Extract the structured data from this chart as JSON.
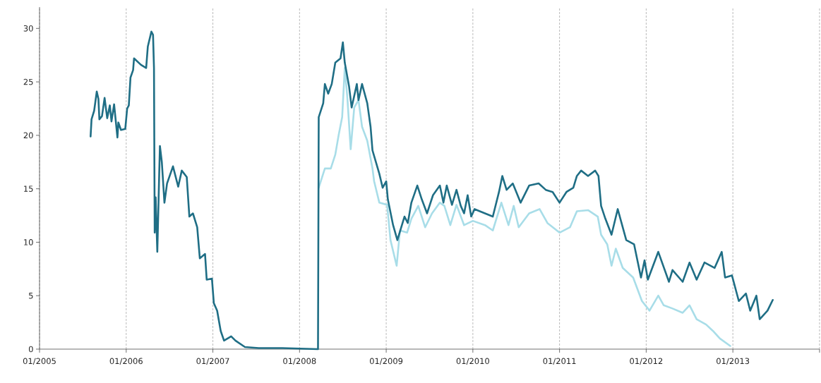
{
  "chart_data": {
    "type": "line",
    "xlim": [
      "2005-01-01",
      "2014-01-01"
    ],
    "ylim": [
      0,
      32
    ],
    "xticks": [
      {
        "value": "2005-01-01",
        "label": "01/2005"
      },
      {
        "value": "2006-01-01",
        "label": "01/2006"
      },
      {
        "value": "2007-01-01",
        "label": "01/2007"
      },
      {
        "value": "2008-01-01",
        "label": "01/2008"
      },
      {
        "value": "2009-01-01",
        "label": "01/2009"
      },
      {
        "value": "2010-01-01",
        "label": "01/2010"
      },
      {
        "value": "2011-01-01",
        "label": "01/2011"
      },
      {
        "value": "2012-01-01",
        "label": "01/2012"
      },
      {
        "value": "2013-01-01",
        "label": "01/2013"
      },
      {
        "value": "2014-01-01",
        "label": null
      }
    ],
    "yticks": [
      0,
      5,
      10,
      15,
      20,
      25,
      30
    ],
    "grid": "x",
    "line_style": "solid",
    "series": [
      {
        "color": "#a8dde8",
        "x": [
          "2008-03-22",
          "2008-04-17",
          "2008-05-12",
          "2008-05-31",
          "2008-06-14",
          "2008-06-29",
          "2008-07-10",
          "2008-07-21",
          "2008-08-04",
          "2008-08-19",
          "2008-09-06",
          "2008-09-21",
          "2008-10-13",
          "2008-11-04",
          "2008-11-11",
          "2008-12-03",
          "2009-01-05",
          "2009-01-19",
          "2009-02-14",
          "2009-02-28",
          "2009-03-30",
          "2009-04-17",
          "2009-05-16",
          "2009-06-14",
          "2009-07-13",
          "2009-08-15",
          "2009-09-03",
          "2009-09-28",
          "2009-10-24",
          "2009-11-25",
          "2010-01-01",
          "2010-02-21",
          "2010-03-26",
          "2010-05-01",
          "2010-05-31",
          "2010-06-22",
          "2010-07-13",
          "2010-08-26",
          "2010-10-09",
          "2010-11-11",
          "2011-01-01",
          "2011-02-14",
          "2011-03-15",
          "2011-05-01",
          "2011-06-11",
          "2011-06-25",
          "2011-07-21",
          "2011-08-08",
          "2011-08-26",
          "2011-09-24",
          "2011-11-07",
          "2011-12-14",
          "2012-01-15",
          "2012-02-21",
          "2012-03-15",
          "2012-04-21",
          "2012-06-03",
          "2012-07-02",
          "2012-08-01",
          "2012-09-10",
          "2012-10-09",
          "2012-11-07",
          "2012-12-21"
        ],
        "values": [
          15.1,
          16.9,
          16.9,
          18.2,
          20.0,
          21.7,
          26.3,
          23.5,
          18.7,
          22.6,
          23.3,
          20.8,
          19.5,
          16.9,
          15.7,
          13.7,
          13.5,
          10.2,
          7.8,
          11.1,
          10.9,
          12.2,
          13.4,
          11.4,
          12.7,
          13.7,
          13.4,
          11.6,
          13.5,
          11.6,
          12.0,
          11.6,
          11.1,
          13.7,
          11.6,
          13.4,
          11.4,
          12.7,
          13.1,
          11.8,
          10.9,
          11.4,
          12.9,
          13.0,
          12.4,
          10.7,
          9.8,
          7.8,
          9.4,
          7.6,
          6.7,
          4.5,
          3.6,
          5.0,
          4.1,
          3.8,
          3.4,
          4.1,
          2.8,
          2.3,
          1.7,
          1.0,
          0.3
        ]
      },
      {
        "color": "#1f6e85",
        "x": [
          "2005-08-04",
          "2005-08-08",
          "2005-08-19",
          "2005-08-30",
          "2005-09-06",
          "2005-09-10",
          "2005-09-21",
          "2005-10-02",
          "2005-10-13",
          "2005-10-24",
          "2005-10-31",
          "2005-11-11",
          "2005-11-25",
          "2005-11-29",
          "2005-12-10",
          "2005-12-28",
          "2006-01-05",
          "2006-01-12",
          "2006-01-19",
          "2006-01-30",
          "2006-02-03",
          "2006-03-04",
          "2006-03-26",
          "2006-04-02",
          "2006-04-17",
          "2006-04-24",
          "2006-04-28",
          "2006-05-01",
          "2006-05-05",
          "2006-05-12",
          "2006-05-20",
          "2006-05-23",
          "2006-05-31",
          "2006-06-11",
          "2006-06-22",
          "2006-07-17",
          "2006-08-08",
          "2006-08-23",
          "2006-09-13",
          "2006-09-24",
          "2006-10-09",
          "2006-10-27",
          "2006-11-07",
          "2006-11-29",
          "2006-12-06",
          "2006-12-28",
          "2007-01-05",
          "2007-01-19",
          "2007-02-03",
          "2007-02-17",
          "2007-03-19",
          "2007-04-06",
          "2007-05-16",
          "2007-07-13",
          "2007-10-20",
          "2008-03-19",
          "2008-03-22",
          "2008-04-10",
          "2008-04-17",
          "2008-05-01",
          "2008-05-16",
          "2008-05-31",
          "2008-06-22",
          "2008-07-02",
          "2008-07-10",
          "2008-07-28",
          "2008-08-08",
          "2008-08-30",
          "2008-09-06",
          "2008-09-21",
          "2008-10-13",
          "2008-10-27",
          "2008-11-04",
          "2008-12-03",
          "2008-12-17",
          "2009-01-01",
          "2009-01-08",
          "2009-01-30",
          "2009-02-17",
          "2009-03-19",
          "2009-04-02",
          "2009-04-17",
          "2009-05-12",
          "2009-05-31",
          "2009-06-22",
          "2009-07-17",
          "2009-08-15",
          "2009-08-30",
          "2009-09-13",
          "2009-10-05",
          "2009-10-24",
          "2009-11-11",
          "2009-11-25",
          "2009-12-10",
          "2009-12-25",
          "2010-01-08",
          "2010-02-21",
          "2010-03-26",
          "2010-04-21",
          "2010-05-05",
          "2010-05-23",
          "2010-06-18",
          "2010-07-21",
          "2010-08-26",
          "2010-10-05",
          "2010-11-04",
          "2010-12-03",
          "2011-01-01",
          "2011-01-30",
          "2011-02-28",
          "2011-03-15",
          "2011-04-02",
          "2011-05-01",
          "2011-05-31",
          "2011-06-14",
          "2011-06-25",
          "2011-07-13",
          "2011-08-08",
          "2011-09-03",
          "2011-10-09",
          "2011-11-11",
          "2011-12-10",
          "2011-12-25",
          "2012-01-08",
          "2012-02-21",
          "2012-04-06",
          "2012-04-21",
          "2012-06-03",
          "2012-07-02",
          "2012-08-01",
          "2012-09-03",
          "2012-10-16",
          "2012-11-15",
          "2012-11-29",
          "2012-12-28",
          "2013-01-26",
          "2013-02-25",
          "2013-03-15",
          "2013-04-10",
          "2013-04-24",
          "2013-05-27",
          "2013-06-18"
        ],
        "values": [
          19.9,
          21.5,
          22.3,
          24.1,
          23.4,
          21.5,
          21.8,
          23.5,
          21.6,
          22.8,
          21.3,
          22.9,
          19.8,
          21.2,
          20.5,
          20.6,
          22.5,
          22.8,
          25.4,
          26.1,
          27.2,
          26.6,
          26.3,
          28.3,
          29.7,
          29.4,
          26.3,
          10.9,
          14.2,
          9.1,
          16.4,
          19.0,
          17.5,
          13.7,
          15.5,
          17.1,
          15.2,
          16.7,
          16.1,
          12.4,
          12.7,
          11.4,
          8.5,
          8.9,
          6.5,
          6.6,
          4.3,
          3.6,
          1.7,
          0.8,
          1.2,
          0.8,
          0.2,
          0.1,
          0.1,
          0.0,
          21.7,
          23.0,
          24.8,
          23.9,
          24.8,
          26.8,
          27.2,
          28.7,
          26.8,
          24.6,
          22.6,
          24.8,
          23.3,
          24.8,
          23.0,
          20.8,
          18.6,
          16.4,
          15.1,
          15.7,
          14.0,
          11.6,
          10.2,
          12.4,
          11.8,
          13.7,
          15.3,
          14.0,
          12.7,
          14.4,
          15.3,
          13.7,
          15.3,
          13.5,
          14.9,
          13.4,
          12.7,
          14.4,
          12.4,
          13.1,
          12.7,
          12.4,
          14.7,
          16.2,
          14.9,
          15.5,
          13.7,
          15.3,
          15.5,
          14.9,
          14.7,
          13.7,
          14.7,
          15.1,
          16.2,
          16.7,
          16.2,
          16.7,
          16.2,
          13.4,
          12.2,
          10.7,
          13.1,
          10.2,
          9.8,
          6.7,
          8.3,
          6.5,
          9.1,
          6.3,
          7.4,
          6.3,
          8.1,
          6.5,
          8.1,
          7.6,
          9.1,
          6.7,
          6.9,
          4.5,
          5.2,
          3.6,
          5.0,
          2.8,
          3.6,
          4.6
        ]
      }
    ]
  }
}
